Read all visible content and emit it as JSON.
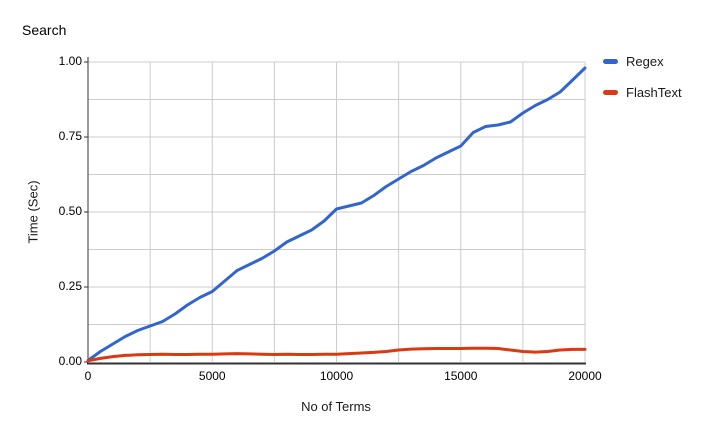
{
  "title": "Search",
  "legend": [
    {
      "label": "Regex",
      "color": "#3366cc"
    },
    {
      "label": "FlashText",
      "color": "#dc3912"
    }
  ],
  "colors": {
    "background": "#ffffff",
    "grid": "#cccccc",
    "axis": "#333333",
    "text": "#000000",
    "regex": "#3366cc",
    "flashtext": "#dc3912"
  },
  "chart_data": {
    "type": "line",
    "title": "Search",
    "xlabel": "No of Terms",
    "ylabel": "Time (Sec)",
    "xlim": [
      0,
      20000
    ],
    "ylim": [
      0,
      1.0
    ],
    "x_ticks": [
      0,
      5000,
      10000,
      15000,
      20000
    ],
    "x_tick_labels": [
      "0",
      "5000",
      "10000",
      "15000",
      "20000"
    ],
    "y_ticks": [
      0,
      0.25,
      0.5,
      0.75,
      1.0
    ],
    "y_tick_labels": [
      "0.00",
      "0.25",
      "0.50",
      "0.75",
      "1.00"
    ],
    "x_minor_step": 2500,
    "y_minor_step": 0.125,
    "grid": true,
    "legend_position": "right",
    "series": [
      {
        "name": "Regex",
        "color": "#3366cc",
        "x": [
          0,
          500,
          1000,
          1500,
          2000,
          2500,
          3000,
          3500,
          4000,
          4500,
          5000,
          5500,
          6000,
          6500,
          7000,
          7500,
          8000,
          8500,
          9000,
          9500,
          10000,
          10500,
          11000,
          11500,
          12000,
          12500,
          13000,
          13500,
          14000,
          14500,
          15000,
          15500,
          16000,
          16500,
          17000,
          17500,
          18000,
          18500,
          19000,
          19500,
          20000
        ],
        "y": [
          0.005,
          0.035,
          0.06,
          0.085,
          0.105,
          0.12,
          0.135,
          0.16,
          0.19,
          0.215,
          0.235,
          0.27,
          0.305,
          0.325,
          0.345,
          0.37,
          0.4,
          0.42,
          0.44,
          0.47,
          0.51,
          0.52,
          0.53,
          0.555,
          0.585,
          0.61,
          0.635,
          0.655,
          0.68,
          0.7,
          0.72,
          0.765,
          0.785,
          0.79,
          0.8,
          0.83,
          0.855,
          0.875,
          0.9,
          0.94,
          0.98
        ]
      },
      {
        "name": "FlashText",
        "color": "#dc3912",
        "x": [
          0,
          500,
          1000,
          1500,
          2000,
          2500,
          3000,
          3500,
          4000,
          4500,
          5000,
          5500,
          6000,
          6500,
          7000,
          7500,
          8000,
          8500,
          9000,
          9500,
          10000,
          10500,
          11000,
          11500,
          12000,
          12500,
          13000,
          13500,
          14000,
          14500,
          15000,
          15500,
          16000,
          16500,
          17000,
          17500,
          18000,
          18500,
          19000,
          19500,
          20000
        ],
        "y": [
          0.004,
          0.012,
          0.018,
          0.022,
          0.024,
          0.025,
          0.026,
          0.025,
          0.025,
          0.026,
          0.026,
          0.027,
          0.028,
          0.027,
          0.026,
          0.025,
          0.026,
          0.025,
          0.025,
          0.026,
          0.026,
          0.028,
          0.03,
          0.032,
          0.035,
          0.04,
          0.043,
          0.044,
          0.045,
          0.045,
          0.045,
          0.046,
          0.046,
          0.045,
          0.04,
          0.035,
          0.033,
          0.035,
          0.04,
          0.042,
          0.042
        ]
      }
    ]
  }
}
